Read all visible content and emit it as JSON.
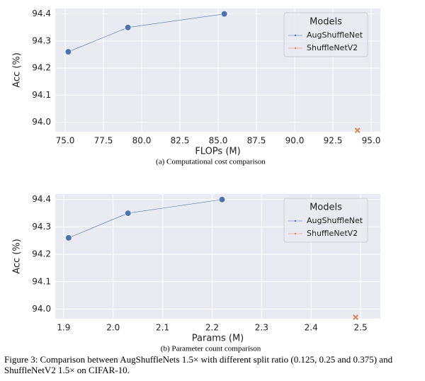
{
  "chart_data": [
    {
      "type": "line",
      "xlabel": "FLOPs (M)",
      "ylabel": "Acc (%)",
      "caption": "(a) Computational cost comparison",
      "legend_title": "Models",
      "legend": "upper right",
      "grid": true,
      "series": [
        {
          "name": "AugShuffleNet",
          "color": "#4c72b0",
          "marker": "o",
          "x": [
            75.2,
            79.1,
            85.4
          ],
          "values": [
            94.26,
            94.35,
            94.4
          ]
        },
        {
          "name": "ShuffleNetV2",
          "color": "#dd8452",
          "marker": "x",
          "x": [
            94.1
          ],
          "values": [
            93.97
          ]
        }
      ],
      "xlim": [
        74.35,
        95.6
      ],
      "xticks": [
        {
          "value": 75,
          "label": "75.0"
        },
        77.5,
        {
          "value": 80,
          "label": "80.0"
        },
        82.5,
        {
          "value": 85,
          "label": "85.0"
        },
        87.5,
        {
          "value": 90,
          "label": "90.0"
        },
        92.5,
        {
          "value": 95,
          "label": "95.0"
        }
      ],
      "ylim": [
        93.965,
        94.42
      ],
      "yticks": [
        {
          "value": 94,
          "label": "94.0"
        },
        94.1,
        94.2,
        94.3,
        94.4
      ]
    },
    {
      "type": "line",
      "xlabel": "Params (M)",
      "ylabel": "Acc (%)",
      "caption": "(b) Parameter count comparison",
      "legend_title": "Models",
      "legend": "upper right",
      "grid": true,
      "series": [
        {
          "name": "AugShuffleNet",
          "color": "#4c72b0",
          "marker": "o",
          "x": [
            1.91,
            2.03,
            2.22
          ],
          "values": [
            94.26,
            94.35,
            94.4
          ]
        },
        {
          "name": "ShuffleNetV2",
          "color": "#dd8452",
          "marker": "x",
          "x": [
            2.49
          ],
          "values": [
            93.97
          ]
        }
      ],
      "xlim": [
        1.883,
        2.54
      ],
      "xticks": [
        1.9,
        {
          "value": 2,
          "label": "2.0"
        },
        2.1,
        2.2,
        2.3,
        2.4,
        2.5
      ],
      "ylim": [
        93.965,
        94.42
      ],
      "yticks": [
        {
          "value": 94,
          "label": "94.0"
        },
        94.1,
        94.2,
        94.3,
        94.4
      ]
    }
  ],
  "figure_caption": "Figure 3: Comparison between AugShuffleNets 1.5× with different split ratio (0.125, 0.25 and 0.375) and ShuffleNetV2 1.5× on CIFAR-10."
}
